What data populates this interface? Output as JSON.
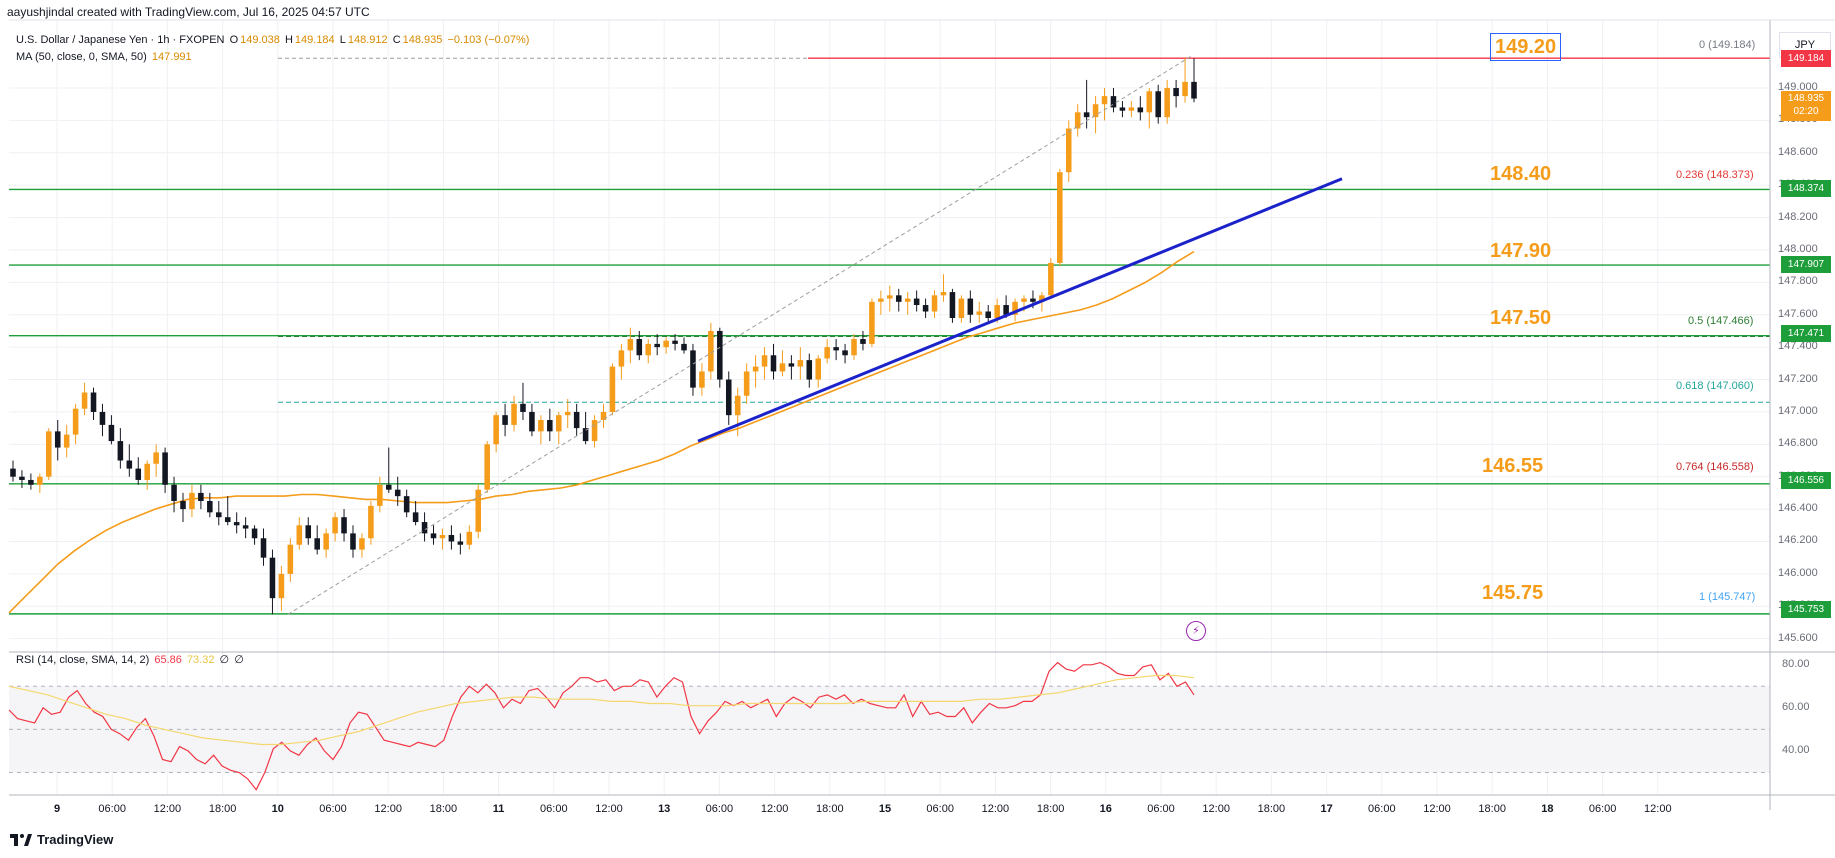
{
  "header": {
    "created_by": "aayushjindal created with TradingView.com, Jul 16, 2025 04:57 UTC"
  },
  "legend": {
    "symbol": "U.S. Dollar / Japanese Yen · 1h · FXOPEN",
    "open_label": "O",
    "open": "149.038",
    "high_label": "H",
    "high": "149.184",
    "low_label": "L",
    "low": "148.912",
    "close_label": "C",
    "close": "148.935",
    "change": "−0.103 (−0.07%)",
    "ma_label": "MA (50, close, 0, SMA, 50)",
    "ma_value": "147.991",
    "rsi_label": "RSI (14, close, SMA, 14, 2)",
    "rsi_value": "65.86",
    "rsi_sma_value": "73.32",
    "rsi_extra1": "∅",
    "rsi_extra2": "∅"
  },
  "currency": "JPY",
  "price_axis": [
    "149.000",
    "148.800",
    "148.600",
    "148.400",
    "148.200",
    "148.000",
    "147.800",
    "147.600",
    "147.400",
    "147.200",
    "147.000",
    "146.800",
    "146.600",
    "146.400",
    "146.200",
    "146.000",
    "145.800",
    "145.600"
  ],
  "rsi_axis": [
    "80.00",
    "60.00",
    "40.00"
  ],
  "price_tags": {
    "current": "148.935",
    "countdown": "02:20",
    "top": "149.184",
    "t148374": "148.374",
    "t147907": "147.907",
    "t147471": "147.471",
    "t146556": "146.556",
    "t145753": "145.753"
  },
  "levels": {
    "l14920": "149.20",
    "l14840": "148.40",
    "l14790": "147.90",
    "l14750": "147.50",
    "l14655": "146.55",
    "l14575": "145.75"
  },
  "fib": {
    "f0": "0 (149.184)",
    "f236": "0.236 (148.373)",
    "f5": "0.5 (147.466)",
    "f618": "0.618 (147.060)",
    "f764": "0.764 (146.558)",
    "f1": "1 (145.747)"
  },
  "time_axis": [
    {
      "label": "9",
      "day": true
    },
    {
      "label": "06:00",
      "day": false
    },
    {
      "label": "12:00",
      "day": false
    },
    {
      "label": "18:00",
      "day": false
    },
    {
      "label": "10",
      "day": true
    },
    {
      "label": "06:00",
      "day": false
    },
    {
      "label": "12:00",
      "day": false
    },
    {
      "label": "18:00",
      "day": false
    },
    {
      "label": "11",
      "day": true
    },
    {
      "label": "06:00",
      "day": false
    },
    {
      "label": "12:00",
      "day": false
    },
    {
      "label": "13",
      "day": true
    },
    {
      "label": "06:00",
      "day": false
    },
    {
      "label": "12:00",
      "day": false
    },
    {
      "label": "18:00",
      "day": false
    },
    {
      "label": "15",
      "day": true
    },
    {
      "label": "06:00",
      "day": false
    },
    {
      "label": "12:00",
      "day": false
    },
    {
      "label": "18:00",
      "day": false
    },
    {
      "label": "16",
      "day": true
    },
    {
      "label": "06:00",
      "day": false
    },
    {
      "label": "12:00",
      "day": false
    },
    {
      "label": "18:00",
      "day": false
    },
    {
      "label": "17",
      "day": true
    },
    {
      "label": "06:00",
      "day": false
    },
    {
      "label": "12:00",
      "day": false
    },
    {
      "label": "18:00",
      "day": false
    },
    {
      "label": "18",
      "day": true
    },
    {
      "label": "06:00",
      "day": false
    },
    {
      "label": "12:00",
      "day": false
    }
  ],
  "footer": {
    "brand": "TradingView"
  },
  "colors": {
    "bull": "#f59c1a",
    "bear": "#131722",
    "ma": "#f59c1a",
    "trendline": "#1b22c9",
    "support": "#1e9e3a",
    "resistance": "#f23645",
    "rsi": "#f23645",
    "rsi_sma": "#f5d76e"
  },
  "chart_data": {
    "type": "candlestick",
    "price_range": [
      145.55,
      149.28
    ],
    "rsi_range": [
      20,
      85
    ],
    "candles": [
      [
        146.65,
        146.7,
        146.57,
        146.6
      ],
      [
        146.6,
        146.64,
        146.53,
        146.58
      ],
      [
        146.58,
        146.62,
        146.52,
        146.55
      ],
      [
        146.55,
        146.62,
        146.5,
        146.6
      ],
      [
        146.6,
        146.9,
        146.58,
        146.88
      ],
      [
        146.88,
        146.95,
        146.7,
        146.78
      ],
      [
        146.78,
        146.92,
        146.72,
        146.86
      ],
      [
        146.86,
        147.05,
        146.8,
        147.02
      ],
      [
        147.02,
        147.18,
        146.98,
        147.12
      ],
      [
        147.12,
        147.15,
        146.95,
        147.0
      ],
      [
        147.0,
        147.05,
        146.85,
        146.92
      ],
      [
        146.92,
        146.98,
        146.8,
        146.82
      ],
      [
        146.82,
        146.9,
        146.65,
        146.7
      ],
      [
        146.7,
        146.8,
        146.6,
        146.65
      ],
      [
        146.65,
        146.72,
        146.55,
        146.58
      ],
      [
        146.58,
        146.7,
        146.52,
        146.68
      ],
      [
        146.68,
        146.8,
        146.6,
        146.75
      ],
      [
        146.75,
        146.78,
        146.5,
        146.55
      ],
      [
        146.55,
        146.6,
        146.38,
        146.45
      ],
      [
        146.45,
        146.5,
        146.32,
        146.4
      ],
      [
        146.4,
        146.55,
        146.35,
        146.5
      ],
      [
        146.5,
        146.55,
        146.4,
        146.45
      ],
      [
        146.45,
        146.5,
        146.35,
        146.38
      ],
      [
        146.38,
        146.45,
        146.3,
        146.35
      ],
      [
        146.35,
        146.48,
        146.3,
        146.32
      ],
      [
        146.32,
        146.38,
        146.25,
        146.3
      ],
      [
        146.3,
        146.35,
        146.22,
        146.28
      ],
      [
        146.28,
        146.3,
        146.18,
        146.22
      ],
      [
        146.22,
        146.28,
        146.05,
        146.1
      ],
      [
        146.1,
        146.15,
        145.75,
        145.85
      ],
      [
        145.85,
        146.05,
        145.77,
        146.0
      ],
      [
        146.0,
        146.22,
        145.95,
        146.18
      ],
      [
        146.18,
        146.35,
        146.15,
        146.3
      ],
      [
        146.3,
        146.35,
        146.18,
        146.22
      ],
      [
        146.22,
        146.3,
        146.12,
        146.15
      ],
      [
        146.15,
        146.28,
        146.1,
        146.25
      ],
      [
        146.25,
        146.38,
        146.2,
        146.35
      ],
      [
        146.35,
        146.4,
        146.2,
        146.25
      ],
      [
        146.25,
        146.3,
        146.1,
        146.15
      ],
      [
        146.15,
        146.25,
        146.1,
        146.22
      ],
      [
        146.22,
        146.45,
        146.18,
        146.42
      ],
      [
        146.42,
        146.6,
        146.38,
        146.55
      ],
      [
        146.55,
        146.78,
        146.5,
        146.52
      ],
      [
        146.52,
        146.6,
        146.42,
        146.48
      ],
      [
        146.48,
        146.52,
        146.35,
        146.38
      ],
      [
        146.38,
        146.45,
        146.3,
        146.32
      ],
      [
        146.32,
        146.38,
        146.2,
        146.25
      ],
      [
        146.25,
        146.3,
        146.18,
        146.22
      ],
      [
        146.22,
        146.28,
        146.15,
        146.24
      ],
      [
        146.24,
        146.3,
        146.15,
        146.2
      ],
      [
        146.2,
        146.25,
        146.12,
        146.18
      ],
      [
        146.18,
        146.3,
        146.15,
        146.26
      ],
      [
        146.26,
        146.55,
        146.22,
        146.52
      ],
      [
        146.52,
        146.82,
        146.5,
        146.8
      ],
      [
        146.8,
        147.0,
        146.75,
        146.98
      ],
      [
        146.98,
        147.05,
        146.85,
        146.92
      ],
      [
        146.92,
        147.1,
        146.88,
        147.05
      ],
      [
        147.05,
        147.18,
        146.95,
        147.0
      ],
      [
        147.0,
        147.05,
        146.85,
        146.88
      ],
      [
        146.88,
        146.98,
        146.8,
        146.95
      ],
      [
        146.95,
        147.02,
        146.82,
        146.88
      ],
      [
        146.88,
        147.0,
        146.8,
        146.98
      ],
      [
        146.98,
        147.08,
        146.9,
        147.0
      ],
      [
        147.0,
        147.05,
        146.85,
        146.9
      ],
      [
        146.9,
        147.0,
        146.8,
        146.82
      ],
      [
        146.82,
        146.98,
        146.78,
        146.95
      ],
      [
        146.95,
        147.05,
        146.9,
        147.0
      ],
      [
        147.0,
        147.3,
        146.98,
        147.28
      ],
      [
        147.28,
        147.42,
        147.2,
        147.38
      ],
      [
        147.38,
        147.52,
        147.3,
        147.45
      ],
      [
        147.45,
        147.5,
        147.32,
        147.35
      ],
      [
        147.35,
        147.45,
        147.3,
        147.42
      ],
      [
        147.42,
        147.48,
        147.35,
        147.4
      ],
      [
        147.4,
        147.46,
        147.36,
        147.44
      ],
      [
        147.44,
        147.48,
        147.38,
        147.42
      ],
      [
        147.42,
        147.46,
        147.36,
        147.38
      ],
      [
        147.38,
        147.42,
        147.1,
        147.15
      ],
      [
        147.15,
        147.3,
        147.1,
        147.25
      ],
      [
        147.25,
        147.55,
        147.2,
        147.5
      ],
      [
        147.5,
        147.52,
        147.15,
        147.2
      ],
      [
        147.2,
        147.25,
        146.92,
        146.98
      ],
      [
        146.98,
        147.15,
        146.85,
        147.1
      ],
      [
        147.1,
        147.3,
        147.05,
        147.25
      ],
      [
        147.25,
        147.35,
        147.15,
        147.28
      ],
      [
        147.28,
        147.4,
        147.2,
        147.35
      ],
      [
        147.35,
        147.42,
        147.2,
        147.25
      ],
      [
        147.25,
        147.38,
        147.22,
        147.3
      ],
      [
        147.3,
        147.35,
        147.2,
        147.28
      ],
      [
        147.28,
        147.4,
        147.2,
        147.32
      ],
      [
        147.32,
        147.36,
        147.15,
        147.2
      ],
      [
        147.2,
        147.35,
        147.15,
        147.33
      ],
      [
        147.33,
        147.45,
        147.3,
        147.4
      ],
      [
        147.4,
        147.45,
        147.32,
        147.38
      ],
      [
        147.38,
        147.42,
        147.3,
        147.35
      ],
      [
        147.35,
        147.48,
        147.32,
        147.45
      ],
      [
        147.45,
        147.5,
        147.38,
        147.42
      ],
      [
        147.42,
        147.7,
        147.4,
        147.68
      ],
      [
        147.68,
        147.75,
        147.6,
        147.7
      ],
      [
        147.7,
        147.78,
        147.62,
        147.72
      ],
      [
        147.72,
        147.76,
        147.62,
        147.68
      ],
      [
        147.68,
        147.74,
        147.6,
        147.7
      ],
      [
        147.7,
        147.75,
        147.62,
        147.66
      ],
      [
        147.66,
        147.7,
        147.58,
        147.62
      ],
      [
        147.62,
        147.75,
        147.58,
        147.72
      ],
      [
        147.72,
        147.85,
        147.68,
        147.74
      ],
      [
        147.74,
        147.76,
        147.55,
        147.58
      ],
      [
        147.58,
        147.72,
        147.55,
        147.7
      ],
      [
        147.7,
        147.75,
        147.55,
        147.6
      ],
      [
        147.6,
        147.68,
        147.55,
        147.62
      ],
      [
        147.62,
        147.66,
        147.55,
        147.58
      ],
      [
        147.58,
        147.7,
        147.55,
        147.66
      ],
      [
        147.66,
        147.72,
        147.58,
        147.6
      ],
      [
        147.6,
        147.7,
        147.56,
        147.68
      ],
      [
        147.68,
        147.72,
        147.62,
        147.7
      ],
      [
        147.7,
        147.75,
        147.64,
        147.68
      ],
      [
        147.68,
        147.74,
        147.62,
        147.72
      ],
      [
        147.72,
        147.95,
        147.7,
        147.92
      ],
      [
        147.92,
        148.5,
        147.9,
        148.48
      ],
      [
        148.48,
        148.8,
        148.42,
        148.75
      ],
      [
        148.75,
        148.9,
        148.7,
        148.85
      ],
      [
        148.85,
        149.05,
        148.75,
        148.82
      ],
      [
        148.82,
        148.95,
        148.72,
        148.9
      ],
      [
        148.9,
        149.0,
        148.8,
        148.95
      ],
      [
        148.95,
        149.0,
        148.85,
        148.88
      ],
      [
        148.88,
        148.92,
        148.82,
        148.86
      ],
      [
        148.86,
        148.92,
        148.82,
        148.88
      ],
      [
        148.88,
        148.95,
        148.8,
        148.85
      ],
      [
        148.85,
        149.0,
        148.75,
        148.98
      ],
      [
        148.98,
        149.02,
        148.78,
        148.82
      ],
      [
        148.82,
        149.05,
        148.78,
        149.0
      ],
      [
        149.0,
        149.05,
        148.88,
        148.95
      ],
      [
        148.95,
        149.184,
        148.91,
        149.038
      ],
      [
        149.038,
        149.184,
        148.912,
        148.935
      ]
    ],
    "ma_values": [
      145.76,
      145.86,
      145.96,
      146.06,
      146.14,
      146.21,
      146.27,
      146.32,
      146.36,
      146.4,
      146.43,
      146.46,
      146.47,
      146.47,
      146.48,
      146.48,
      146.48,
      146.48,
      146.49,
      146.49,
      146.48,
      146.47,
      146.46,
      146.46,
      146.45,
      146.44,
      146.44,
      146.44,
      146.45,
      146.46,
      146.48,
      146.49,
      146.51,
      146.52,
      146.53,
      146.55,
      146.58,
      146.61,
      146.64,
      146.67,
      146.7,
      146.74,
      146.79,
      146.83,
      146.87,
      146.9,
      146.94,
      146.98,
      147.02,
      147.06,
      147.1,
      147.14,
      147.18,
      147.22,
      147.26,
      147.3,
      147.34,
      147.38,
      147.42,
      147.46,
      147.49,
      147.52,
      147.55,
      147.57,
      147.59,
      147.61,
      147.63,
      147.66,
      147.7,
      147.75,
      147.8,
      147.86,
      147.93,
      147.99
    ],
    "rsi_values": [
      59,
      55,
      54,
      53,
      60,
      57,
      58,
      65,
      68,
      62,
      58,
      56,
      50,
      48,
      45,
      51,
      55,
      47,
      36,
      35,
      42,
      40,
      36,
      34,
      38,
      33,
      31,
      30,
      27,
      22,
      30,
      41,
      44,
      40,
      38,
      43,
      46,
      40,
      36,
      42,
      53,
      58,
      57,
      51,
      45,
      44,
      43,
      42,
      44,
      43,
      42,
      45,
      56,
      65,
      70,
      67,
      71,
      67,
      60,
      64,
      62,
      68,
      69,
      65,
      60,
      67,
      70,
      74,
      74,
      72,
      73,
      68,
      70,
      70,
      73,
      72,
      65,
      70,
      74,
      72,
      56,
      48,
      54,
      58,
      63,
      61,
      63,
      60,
      62,
      64,
      56,
      62,
      65,
      63,
      60,
      65,
      66,
      64,
      66,
      62,
      64,
      62,
      61,
      60,
      60,
      66,
      56,
      63,
      57,
      58,
      56,
      56,
      60,
      53,
      58,
      62,
      60,
      60,
      61,
      63,
      63,
      66,
      77,
      81,
      78,
      77,
      80,
      80,
      81,
      79,
      76,
      75,
      75,
      79,
      80,
      73,
      76,
      70,
      72,
      66
    ],
    "rsi_sma_values": [
      70,
      68,
      66,
      63,
      60,
      57,
      55,
      52,
      50,
      48,
      46,
      45,
      44,
      43,
      43,
      44,
      45,
      47,
      49,
      52,
      55,
      58,
      60,
      62,
      63,
      64,
      65,
      65,
      64,
      64,
      64,
      63,
      63,
      62,
      62,
      61,
      61,
      61,
      62,
      62,
      62,
      62,
      62,
      62,
      63,
      63,
      63,
      63,
      63,
      63,
      64,
      64,
      65,
      66,
      67,
      69,
      71,
      73,
      74,
      75,
      75,
      74
    ]
  }
}
